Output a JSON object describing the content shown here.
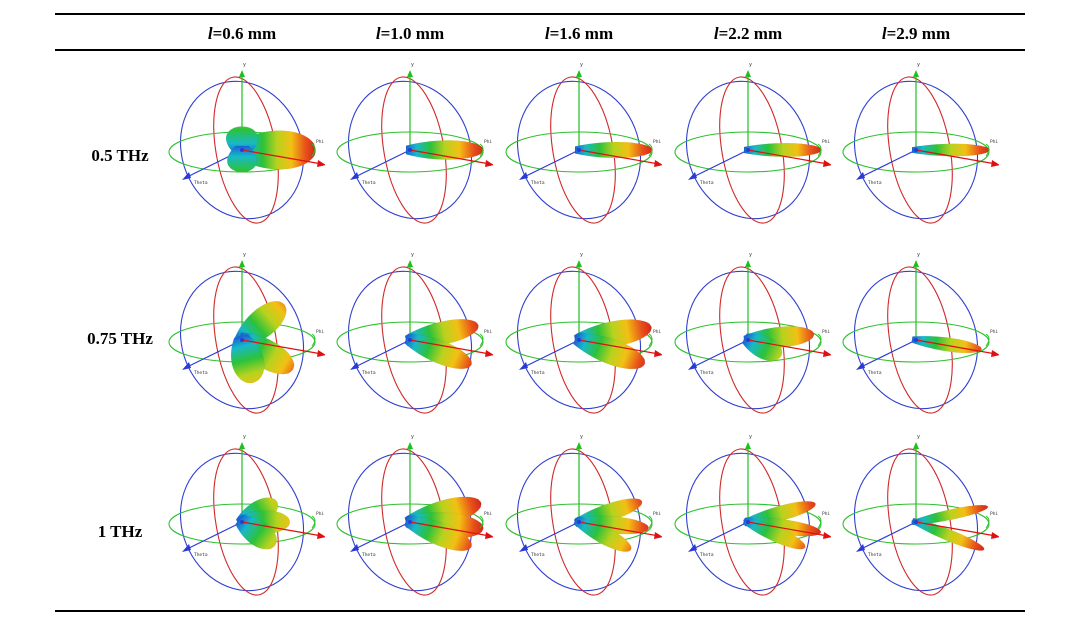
{
  "table": {
    "columns": [
      {
        "var": "l",
        "value": "=0.6 mm"
      },
      {
        "var": "l",
        "value": "=1.0 mm"
      },
      {
        "var": "l",
        "value": "=1.6 mm"
      },
      {
        "var": "l",
        "value": "=2.2 mm"
      },
      {
        "var": "l",
        "value": "=2.9 mm"
      }
    ],
    "rows": [
      {
        "label": "0.5 THz"
      },
      {
        "label": "0.75 THz"
      },
      {
        "label": "1 THz"
      }
    ],
    "axis_labels": {
      "x": "x",
      "y": "y",
      "phi": "Phi",
      "theta": "Theta"
    },
    "patterns": [
      [
        {
          "lobes": [
            {
              "a": 0,
              "len": 1.0,
              "w": 0.34
            },
            {
              "a": -90,
              "len": 0.32,
              "w": 0.28
            },
            {
              "a": 90,
              "len": 0.3,
              "w": 0.26
            }
          ]
        },
        {
          "lobes": [
            {
              "a": 0,
              "len": 1.0,
              "w": 0.17
            }
          ]
        },
        {
          "lobes": [
            {
              "a": 0,
              "len": 1.0,
              "w": 0.14
            }
          ]
        },
        {
          "lobes": [
            {
              "a": 0,
              "len": 1.0,
              "w": 0.12
            }
          ]
        },
        {
          "lobes": [
            {
              "a": 0,
              "len": 1.0,
              "w": 0.11
            }
          ]
        }
      ],
      [
        {
          "lobes": [
            {
              "a": -40,
              "len": 0.75,
              "w": 0.25
            },
            {
              "a": 30,
              "len": 0.8,
              "w": 0.25
            },
            {
              "a": 75,
              "len": 0.6,
              "w": 0.28
            }
          ]
        },
        {
          "lobes": [
            {
              "a": -12,
              "len": 0.95,
              "w": 0.2
            },
            {
              "a": 22,
              "len": 0.9,
              "w": 0.2
            }
          ]
        },
        {
          "lobes": [
            {
              "a": -10,
              "len": 1.0,
              "w": 0.22
            },
            {
              "a": 20,
              "len": 0.95,
              "w": 0.22
            }
          ]
        },
        {
          "lobes": [
            {
              "a": -5,
              "len": 0.9,
              "w": 0.18
            },
            {
              "a": 25,
              "len": 0.5,
              "w": 0.2
            }
          ]
        },
        {
          "lobes": [
            {
              "a": 8,
              "len": 0.9,
              "w": 0.12
            }
          ]
        }
      ],
      [
        {
          "lobes": [
            {
              "a": -30,
              "len": 0.55,
              "w": 0.2
            },
            {
              "a": 0,
              "len": 0.65,
              "w": 0.2
            },
            {
              "a": 35,
              "len": 0.55,
              "w": 0.22
            }
          ]
        },
        {
          "lobes": [
            {
              "a": -15,
              "len": 1.0,
              "w": 0.22
            },
            {
              "a": 5,
              "len": 1.0,
              "w": 0.22
            },
            {
              "a": 22,
              "len": 0.9,
              "w": 0.2
            }
          ]
        },
        {
          "lobes": [
            {
              "a": -18,
              "len": 0.9,
              "w": 0.15
            },
            {
              "a": 5,
              "len": 0.95,
              "w": 0.15
            },
            {
              "a": 28,
              "len": 0.8,
              "w": 0.15
            }
          ]
        },
        {
          "lobes": [
            {
              "a": -15,
              "len": 0.95,
              "w": 0.13
            },
            {
              "a": 8,
              "len": 1.0,
              "w": 0.13
            },
            {
              "a": 24,
              "len": 0.85,
              "w": 0.13
            }
          ]
        },
        {
          "lobes": [
            {
              "a": -12,
              "len": 1.0,
              "w": 0.09
            },
            {
              "a": 22,
              "len": 1.0,
              "w": 0.1
            }
          ]
        }
      ]
    ],
    "colors": {
      "azimuth_ring": "#2ec02e",
      "vertical_ring_a": "#2f3fd0",
      "vertical_ring_b": "#d02828",
      "y_axis": "#1fbf1f",
      "x_axis": "#e01010",
      "z_axis": "#2a3ad6",
      "gradient": [
        "#1a3fd4",
        "#18b8c8",
        "#2dc23a",
        "#b8d21e",
        "#f2c014",
        "#e8501a",
        "#c4181a"
      ]
    }
  }
}
